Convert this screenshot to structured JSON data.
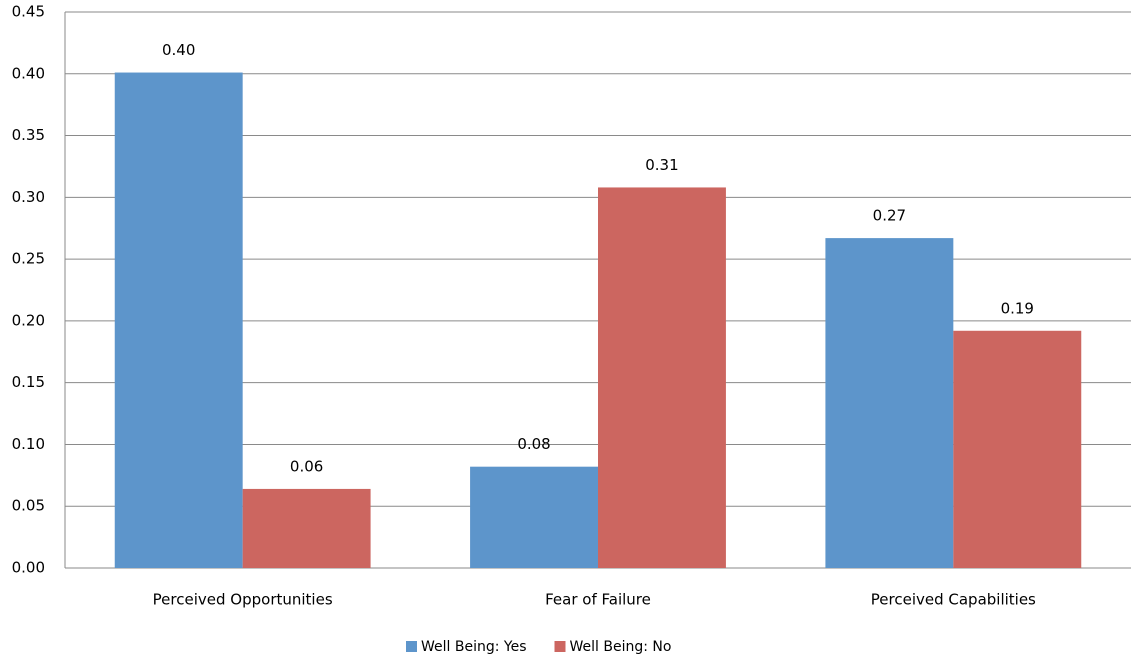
{
  "chart_data": {
    "type": "bar",
    "categories": [
      "Perceived Opportunities",
      "Fear of Failure",
      "Perceived Capabilities"
    ],
    "series": [
      {
        "name": "Well Being: Yes",
        "color": "#5d95cb",
        "values": [
          0.401,
          0.082,
          0.267
        ],
        "value_labels": [
          "0.40",
          "0.08",
          "0.27"
        ]
      },
      {
        "name": "Well Being: No",
        "color": "#cc6660",
        "values": [
          0.064,
          0.308,
          0.192
        ],
        "value_labels": [
          "0.06",
          "0.31",
          "0.19"
        ]
      }
    ],
    "ylim": [
      0,
      0.45
    ],
    "yticks": [
      {
        "value": 0,
        "label": "0.00"
      },
      {
        "value": 0.05,
        "label": "0.05"
      },
      {
        "value": 0.1,
        "label": "0.10"
      },
      {
        "value": 0.15,
        "label": "0.15"
      },
      {
        "value": 0.2,
        "label": "0.20"
      },
      {
        "value": 0.25,
        "label": "0.25"
      },
      {
        "value": 0.3,
        "label": "0.30"
      },
      {
        "value": 0.35,
        "label": "0.35"
      },
      {
        "value": 0.4,
        "label": "0.40"
      },
      {
        "value": 0.45,
        "label": "0.45"
      }
    ],
    "grid": true,
    "legend": "bottom"
  }
}
